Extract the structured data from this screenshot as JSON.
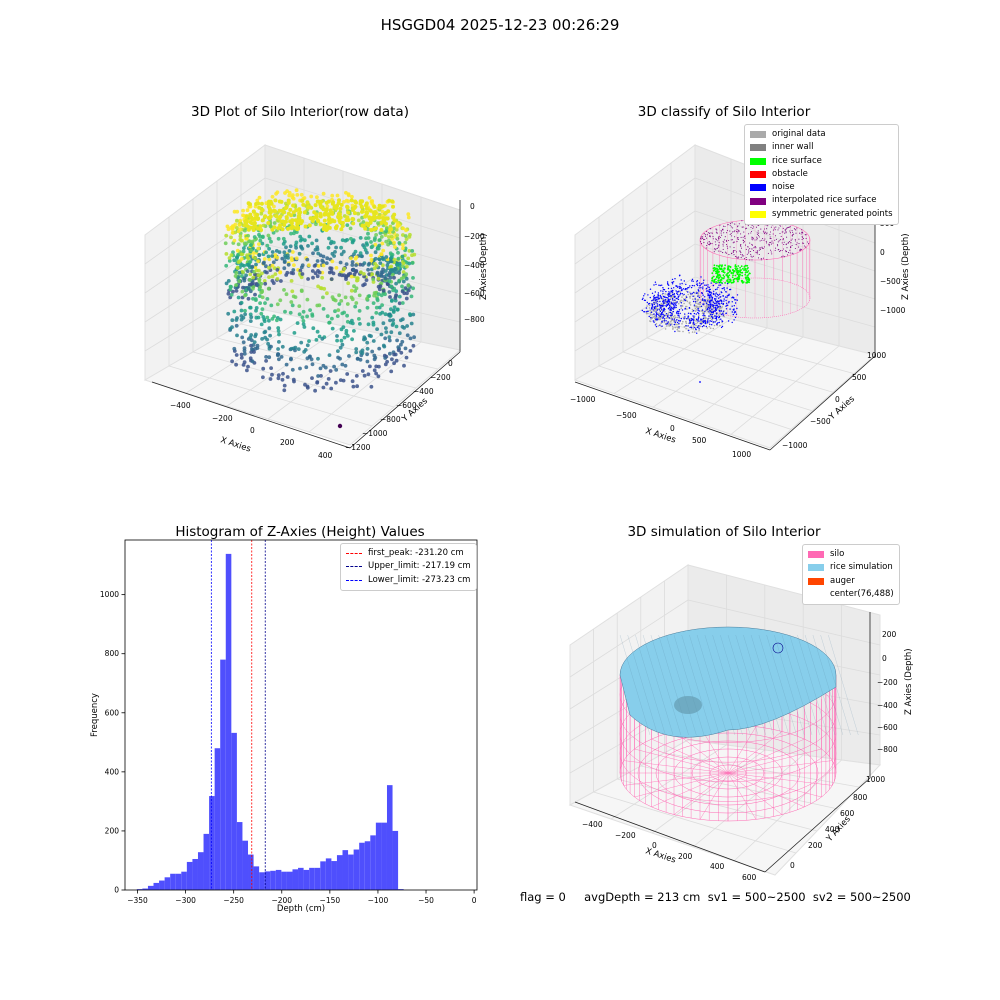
{
  "figure": {
    "suptitle": "HSGGD04 2025-12-23 00:26:29",
    "status_text": "flag = 0     avgDepth = 213 cm  sv1 = 500~2500  sv2 = 500~2500"
  },
  "colors": {
    "hist_bar": "#4f4ffd",
    "silo_pink": "#ff69b4",
    "rice_blue": "#87ceeb",
    "auger_orange": "#ff4500",
    "noise_blue": "#0000ff",
    "rice_green": "#00ff00"
  },
  "chart_data": [
    {
      "type": "scatter",
      "title": "3D Plot of Silo Interior(row data)",
      "projection": "3d",
      "xlabel": "X Axies",
      "ylabel": "Y Axies",
      "zlabel": "Z Axies (Depth)",
      "x_ticks": [
        "−400",
        "−200",
        "0",
        "200",
        "400"
      ],
      "y_ticks": [
        "0",
        "−200",
        "−400",
        "−600",
        "−800",
        "−1000",
        "−1200"
      ],
      "z_ticks": [
        "0",
        "−200",
        "−400",
        "−600",
        "−800"
      ],
      "colormap": "viridis",
      "note": "point cloud of silo interior colored by depth"
    },
    {
      "type": "scatter",
      "title": "3D classify of Silo Interior",
      "projection": "3d",
      "xlabel": "X Axies",
      "ylabel": "Y Axies",
      "zlabel": "Z Axies (Depth)",
      "x_ticks": [
        "−1000",
        "−500",
        "0",
        "500",
        "1000"
      ],
      "y_ticks": [
        "−1000",
        "−500",
        "0",
        "500",
        "1000"
      ],
      "z_ticks": [
        "500",
        "0",
        "−500",
        "−1000"
      ],
      "legend": [
        {
          "label": "original data",
          "color": "#aaaaaa"
        },
        {
          "label": "inner wall",
          "color": "#808080"
        },
        {
          "label": "rice surface",
          "color": "#00ff00"
        },
        {
          "label": "obstacle",
          "color": "#ff0000"
        },
        {
          "label": "noise",
          "color": "#0000ff"
        },
        {
          "label": "interpolated rice surface",
          "color": "#800080"
        },
        {
          "label": "symmetric generated points",
          "color": "#ffff00"
        }
      ]
    },
    {
      "type": "bar",
      "title": "Histogram of Z-Axies (Height) Values",
      "xlabel": "Depth (cm)",
      "ylabel": "Frequency",
      "xlim": [
        -363,
        3
      ],
      "ylim": [
        0,
        1185
      ],
      "x_ticks": [
        -350,
        -300,
        -250,
        -200,
        -150,
        -100,
        -50,
        0
      ],
      "y_ticks": [
        0,
        200,
        400,
        600,
        800,
        1000
      ],
      "bin_start": -350.7,
      "bin_width": 5.78,
      "values": [
        3,
        5,
        14,
        24,
        32,
        43,
        55,
        55,
        62,
        95,
        105,
        128,
        190,
        318,
        480,
        780,
        1138,
        532,
        230,
        167,
        120,
        80,
        60,
        63,
        65,
        68,
        62,
        62,
        70,
        75,
        68,
        75,
        75,
        97,
        107,
        98,
        118,
        135,
        120,
        137,
        160,
        165,
        185,
        228,
        228,
        355,
        200,
        3
      ],
      "vlines": [
        {
          "label": "first_peak: -231.20 cm",
          "x": -231.2,
          "color": "#ff0000"
        },
        {
          "label": "Upper_limit: -217.19 cm",
          "x": -217.19,
          "color": "#00008b"
        },
        {
          "label": "Lower_limit: -273.23 cm",
          "x": -273.23,
          "color": "#0000ff"
        }
      ]
    },
    {
      "type": "surface",
      "title": "3D simulation of Silo Interior",
      "projection": "3d",
      "xlabel": "X Axies",
      "ylabel": "Y Axies",
      "zlabel": "Z Axies (Depth)",
      "x_ticks": [
        "−400",
        "−200",
        "0",
        "200",
        "400",
        "600"
      ],
      "y_ticks": [
        "0",
        "200",
        "400",
        "600",
        "800",
        "1000"
      ],
      "z_ticks": [
        "200",
        "0",
        "−200",
        "−400",
        "−600",
        "−800"
      ],
      "legend": [
        {
          "label": "silo",
          "color": "#ff69b4"
        },
        {
          "label": "rice simulation",
          "color": "#87ceeb"
        },
        {
          "label": "auger",
          "color": "#ff4500"
        },
        {
          "label": "center(76,488)",
          "color": ""
        }
      ]
    }
  ]
}
